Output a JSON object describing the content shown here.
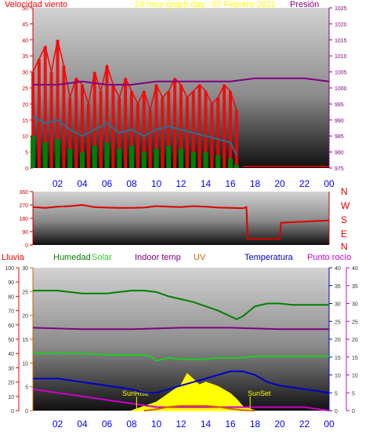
{
  "header": {
    "wind_label": "Velocidad viento",
    "graph_title": "24 hour graph day : 07 Febrero 2021",
    "pressure_label": "Presión"
  },
  "legend_row": {
    "rain": "Lluvia",
    "humidity": "Humedad",
    "solar": "Solar",
    "indoor": "Indoor temp",
    "uv": "UV",
    "temperature": "Temperatura",
    "dewpoint": "Punto rocío"
  },
  "compass": [
    "N",
    "W",
    "S",
    "E",
    "N"
  ],
  "sun": {
    "rise": "SunRise",
    "set": "SunSet"
  },
  "colors": {
    "wind": "#ff0000",
    "gust_bar": "#ff0000",
    "avg_wind": "#2f6f8f",
    "wind_green": "#008000",
    "pressure": "#800080",
    "direction": "#dd0000",
    "rain_axis": "#ff0000",
    "humidity": "#008000",
    "solar": "#ffff00",
    "indoor": "#800080",
    "uv": "#cc6600",
    "temperature": "#0000cc",
    "dewpoint": "#cc00cc",
    "hour_labels": "#0000ff"
  },
  "chart_data": [
    {
      "type": "line",
      "name": "wind-pressure",
      "x_ticks": [
        "02",
        "04",
        "06",
        "08",
        "10",
        "12",
        "14",
        "16",
        "18",
        "20",
        "22",
        "00"
      ],
      "xlim": [
        0,
        24
      ],
      "y_left_ticks": [
        0,
        5,
        10,
        15,
        20,
        25,
        30,
        35,
        40,
        45,
        50
      ],
      "ylim_left": [
        0,
        50
      ],
      "y_right_ticks": [
        975,
        980,
        985,
        990,
        995,
        1000,
        1005,
        1010,
        1015,
        1020,
        1025
      ],
      "ylim_right": [
        975,
        1025
      ],
      "series": [
        {
          "axis": "left",
          "x": [
            0,
            0.5,
            1,
            1.5,
            2,
            2.5,
            3,
            3.5,
            4,
            4.5,
            5,
            5.5,
            6,
            6.5,
            7,
            7.5,
            8,
            8.5,
            9,
            9.5,
            10,
            10.5,
            11,
            11.5,
            12,
            12.5,
            13,
            13.5,
            14,
            14.5,
            15,
            15.5,
            16,
            16.5
          ],
          "values": [
            30,
            34,
            38,
            30,
            40,
            32,
            22,
            28,
            26,
            20,
            30,
            24,
            32,
            26,
            22,
            28,
            24,
            20,
            24,
            18,
            26,
            22,
            24,
            28,
            26,
            22,
            24,
            26,
            24,
            20,
            22,
            26,
            24,
            18
          ]
        },
        {
          "axis": "left",
          "x": [
            0,
            1,
            2,
            3,
            4,
            5,
            6,
            7,
            8,
            9,
            10,
            11,
            12,
            13,
            14,
            15,
            16,
            16.5
          ],
          "values": [
            16,
            14,
            15,
            12,
            10,
            12,
            14,
            11,
            12,
            10,
            12,
            13,
            12,
            11,
            10,
            9,
            8,
            4
          ]
        },
        {
          "axis": "left",
          "x": [
            0,
            1,
            2,
            3,
            4,
            5,
            6,
            7,
            8,
            9,
            10,
            11,
            12,
            13,
            14,
            15,
            16,
            16.5
          ],
          "values": [
            10,
            8,
            9,
            6,
            5,
            7,
            8,
            6,
            7,
            5,
            6,
            7,
            6,
            5,
            5,
            4,
            3,
            1
          ]
        },
        {
          "axis": "right",
          "x": [
            0,
            2,
            4,
            6,
            8,
            10,
            12,
            14,
            16,
            18,
            20,
            22,
            24
          ],
          "values": [
            1001,
            1001,
            1002,
            1001,
            1001,
            1002,
            1002,
            1002,
            1002,
            1003,
            1003,
            1003,
            1002
          ]
        }
      ]
    },
    {
      "type": "line",
      "name": "wind-direction",
      "xlim": [
        0,
        24
      ],
      "y_ticks": [
        0,
        90,
        180,
        270,
        360
      ],
      "ylim": [
        0,
        360
      ],
      "series": [
        {
          "x": [
            0,
            1,
            2,
            3,
            4,
            5,
            6,
            7,
            8,
            9,
            10,
            11,
            12,
            13,
            14,
            15,
            16,
            17,
            17.3,
            17.4,
            20,
            20.1,
            22,
            24
          ],
          "values": [
            255,
            250,
            258,
            262,
            270,
            255,
            252,
            250,
            250,
            252,
            262,
            258,
            255,
            262,
            258,
            252,
            250,
            248,
            255,
            40,
            40,
            150,
            158,
            165
          ]
        }
      ]
    },
    {
      "type": "line",
      "name": "environment",
      "x_ticks": [
        "02",
        "04",
        "06",
        "08",
        "10",
        "12",
        "14",
        "16",
        "18",
        "20",
        "22",
        "00"
      ],
      "xlim": [
        0,
        24
      ],
      "y_rain_ticks": [
        0,
        10,
        20,
        30,
        40,
        50,
        60,
        70,
        80,
        90,
        100
      ],
      "ylim_rain": [
        0,
        100
      ],
      "y_uv_ticks": [
        0,
        5,
        10,
        15,
        20,
        25,
        30
      ],
      "ylim_uv": [
        0,
        30
      ],
      "y_temp_ticks": [
        0,
        5,
        10,
        15,
        20,
        25,
        30,
        35,
        40
      ],
      "ylim_temp": [
        0,
        40
      ],
      "y_dew_ticks": [
        0,
        5,
        10,
        15,
        20,
        25,
        30,
        35,
        40
      ],
      "ylim_dew": [
        0,
        40
      ],
      "series": [
        {
          "name": "Humedad",
          "x": [
            0,
            2,
            4,
            6,
            7,
            8,
            9,
            10,
            11,
            12,
            13,
            14,
            15,
            16,
            16.5,
            17,
            18,
            19,
            20,
            21,
            22,
            23,
            24
          ],
          "values": [
            84,
            84,
            82,
            82,
            83,
            84,
            84,
            83,
            80,
            78,
            76,
            73,
            70,
            66,
            64,
            66,
            73,
            75,
            75,
            74,
            74,
            74,
            74
          ]
        },
        {
          "name": "Solar",
          "x": [
            0,
            2,
            4,
            6,
            8,
            9,
            9.5,
            10,
            11,
            12,
            13,
            14,
            15,
            16,
            17,
            18,
            20,
            22,
            24
          ],
          "values": [
            40,
            40,
            40,
            39,
            39,
            39,
            38,
            35,
            37,
            36,
            36,
            36,
            37,
            37,
            37,
            38,
            38,
            38,
            38
          ]
        },
        {
          "name": "Indoor temp",
          "x": [
            0,
            4,
            8,
            12,
            16,
            20,
            24
          ],
          "values": [
            58,
            57,
            57,
            58,
            58,
            57,
            57
          ]
        },
        {
          "name": "Temperatura",
          "x": [
            0,
            2,
            4,
            6,
            8,
            9,
            10,
            11,
            12,
            13,
            14,
            15,
            16,
            17,
            18,
            19,
            20,
            22,
            24
          ],
          "values": [
            9,
            9,
            8,
            7,
            6,
            5,
            5,
            6,
            7,
            8,
            9,
            10,
            11,
            11,
            10,
            8,
            7,
            6,
            5
          ]
        },
        {
          "name": "Punto rocío",
          "x": [
            0,
            2,
            4,
            6,
            8,
            10,
            12,
            14,
            16,
            18,
            20,
            22,
            24
          ],
          "values": [
            6,
            5,
            4,
            3,
            2,
            1,
            1,
            1,
            1,
            1,
            1,
            1,
            0
          ]
        },
        {
          "name": "UV",
          "x": [
            9,
            10,
            11,
            12,
            13,
            14,
            15,
            16,
            17,
            18
          ],
          "values": [
            0,
            0.3,
            0.8,
            1,
            1,
            1,
            0.8,
            0.4,
            0.1,
            0
          ]
        }
      ],
      "solar_area": {
        "x": [
          8,
          9,
          10,
          11,
          12,
          12.5,
          13,
          13.5,
          14,
          15,
          16,
          16.5,
          17,
          18
        ],
        "values": [
          0,
          3,
          6,
          12,
          18,
          26,
          22,
          18,
          20,
          17,
          12,
          8,
          3,
          0
        ]
      },
      "sun_markers": {
        "rise_hour": 8.4,
        "set_hour": 17.6
      }
    }
  ]
}
